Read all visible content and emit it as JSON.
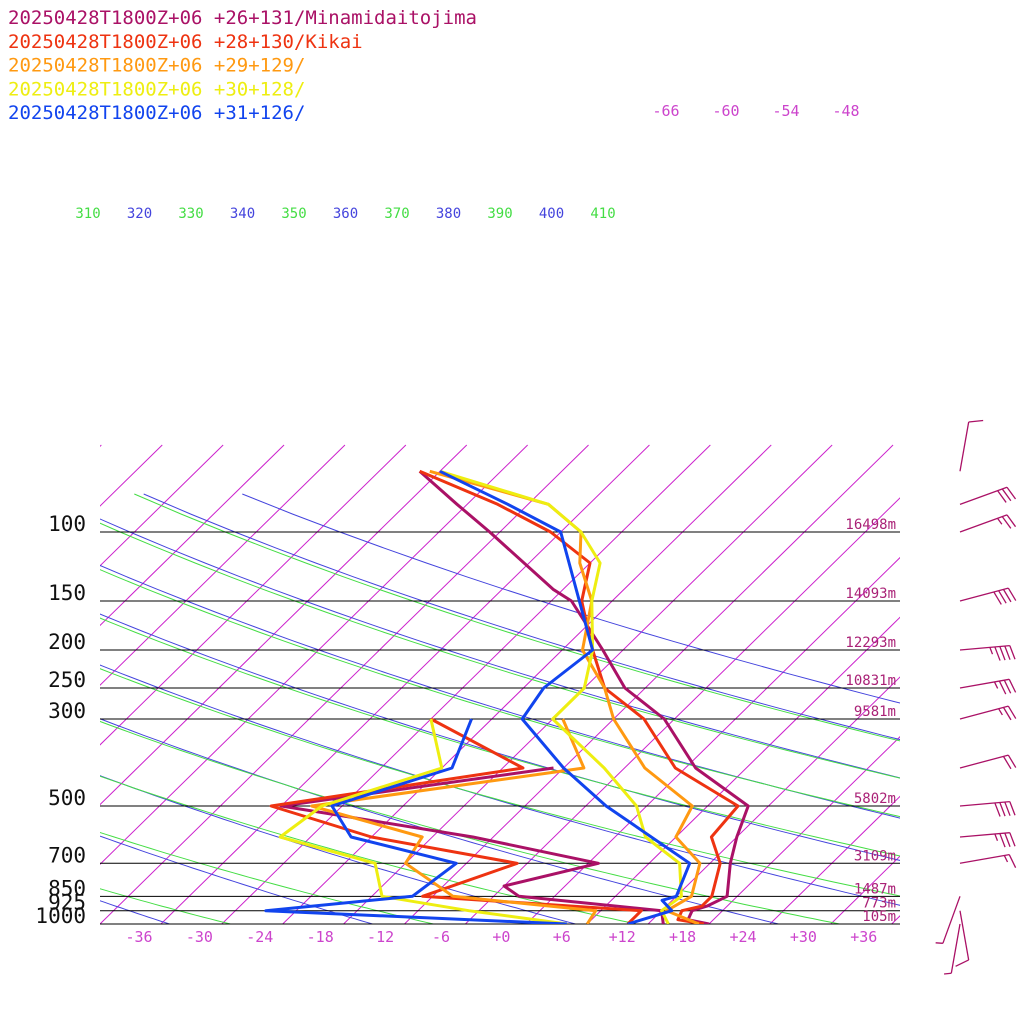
{
  "chart_data": {
    "type": "line",
    "title": "",
    "xlabel": "",
    "ylabel": "",
    "x_axis_unit": "temperature °C (skewed)",
    "y_axis_unit": "pressure hPa (log)",
    "xlim": [
      -40,
      40
    ],
    "ylim": [
      1000,
      70
    ],
    "y_scale": "log",
    "skew": true,
    "grid": true,
    "temperature_ticks": [
      "-36",
      "-30",
      "-24",
      "-18",
      "-12",
      "-6",
      "+0",
      "+6",
      "+12",
      "+18",
      "+24",
      "+30",
      "+36"
    ],
    "pressure_levels": [
      {
        "p": 100,
        "label": "100",
        "height": "16498m"
      },
      {
        "p": 150,
        "label": "150",
        "height": "14093m"
      },
      {
        "p": 200,
        "label": "200",
        "height": "12293m"
      },
      {
        "p": 250,
        "label": "250",
        "height": "10831m"
      },
      {
        "p": 300,
        "label": "300",
        "height": "9581m"
      },
      {
        "p": 500,
        "label": "500",
        "height": "5802m"
      },
      {
        "p": 700,
        "label": "700",
        "height": "3109m"
      },
      {
        "p": 850,
        "label": "850",
        "height": "1487m"
      },
      {
        "p": 925,
        "label": "925",
        "height": "773m"
      },
      {
        "p": 1000,
        "label": "1000",
        "height": "105m"
      }
    ],
    "theta_labels": [
      "310",
      "320",
      "330",
      "340",
      "350",
      "360",
      "370",
      "380",
      "390",
      "400",
      "410"
    ],
    "top_temperature_labels": [
      "-66",
      "-60",
      "-54",
      "-48"
    ],
    "series": [
      {
        "name": "20250428T1800Z+06 +26+131/Minamidaitojima",
        "color": "#aa1166",
        "temperature": [
          {
            "p": 1000,
            "t": 20
          },
          {
            "p": 975,
            "t": 17.5
          },
          {
            "p": 925,
            "t": 17
          },
          {
            "p": 900,
            "t": 18
          },
          {
            "p": 850,
            "t": 19
          },
          {
            "p": 700,
            "t": 16
          },
          {
            "p": 600,
            "t": 14
          },
          {
            "p": 500,
            "t": 12
          },
          {
            "p": 400,
            "t": 3
          },
          {
            "p": 300,
            "t": -5
          },
          {
            "p": 250,
            "t": -12
          },
          {
            "p": 200,
            "t": -18
          },
          {
            "p": 150,
            "t": -26
          },
          {
            "p": 140,
            "t": -29
          },
          {
            "p": 100,
            "t": -41
          },
          {
            "p": 85,
            "t": -47
          },
          {
            "p": 70,
            "t": -54
          }
        ],
        "dewpoint": [
          {
            "p": 1000,
            "t": 15.5
          },
          {
            "p": 925,
            "t": 14
          },
          {
            "p": 850,
            "t": -1.5
          },
          {
            "p": 800,
            "t": -4
          },
          {
            "p": 700,
            "t": 3
          },
          {
            "p": 600,
            "t": -12
          },
          {
            "p": 500,
            "t": -34
          },
          {
            "p": 400,
            "t": -11
          }
        ]
      },
      {
        "name": "20250428T1800Z+06 +28+130/Kikai",
        "color": "#ee3311",
        "temperature": [
          {
            "p": 1000,
            "t": 19.5
          },
          {
            "p": 975,
            "t": 16.5
          },
          {
            "p": 925,
            "t": 16
          },
          {
            "p": 900,
            "t": 17.5
          },
          {
            "p": 850,
            "t": 17.5
          },
          {
            "p": 700,
            "t": 15
          },
          {
            "p": 600,
            "t": 11.5
          },
          {
            "p": 500,
            "t": 11
          },
          {
            "p": 400,
            "t": 1
          },
          {
            "p": 300,
            "t": -7
          },
          {
            "p": 250,
            "t": -14
          },
          {
            "p": 200,
            "t": -19
          },
          {
            "p": 150,
            "t": -25
          },
          {
            "p": 120,
            "t": -28
          },
          {
            "p": 100,
            "t": -35
          },
          {
            "p": 85,
            "t": -43
          },
          {
            "p": 70,
            "t": -54
          }
        ],
        "dewpoint": [
          {
            "p": 1000,
            "t": 12
          },
          {
            "p": 925,
            "t": 12
          },
          {
            "p": 850,
            "t": -11
          },
          {
            "p": 700,
            "t": -5
          },
          {
            "p": 600,
            "t": -22
          },
          {
            "p": 500,
            "t": -35
          },
          {
            "p": 400,
            "t": -14
          },
          {
            "p": 300,
            "t": -28
          }
        ]
      },
      {
        "name": "20250428T1800Z+06 +29+129/",
        "color": "#ff9911",
        "temperature": [
          {
            "p": 1000,
            "t": 19
          },
          {
            "p": 925,
            "t": 14.5
          },
          {
            "p": 850,
            "t": 15.5
          },
          {
            "p": 700,
            "t": 13
          },
          {
            "p": 600,
            "t": 8
          },
          {
            "p": 500,
            "t": 6.5
          },
          {
            "p": 400,
            "t": -2
          },
          {
            "p": 300,
            "t": -10
          },
          {
            "p": 250,
            "t": -14
          },
          {
            "p": 200,
            "t": -20
          },
          {
            "p": 150,
            "t": -24
          },
          {
            "p": 120,
            "t": -29
          },
          {
            "p": 100,
            "t": -32
          },
          {
            "p": 85,
            "t": -38
          },
          {
            "p": 70,
            "t": -53
          }
        ],
        "dewpoint": [
          {
            "p": 1000,
            "t": 8
          },
          {
            "p": 925,
            "t": 7.5
          },
          {
            "p": 850,
            "t": -8
          },
          {
            "p": 700,
            "t": -16
          },
          {
            "p": 600,
            "t": -17
          },
          {
            "p": 500,
            "t": -31
          },
          {
            "p": 400,
            "t": -8
          },
          {
            "p": 300,
            "t": -15
          }
        ]
      },
      {
        "name": "20250428T1800Z+06 +30+128/",
        "color": "#eeee11",
        "temperature": [
          {
            "p": 1000,
            "t": 16
          },
          {
            "p": 925,
            "t": 14
          },
          {
            "p": 850,
            "t": 14.5
          },
          {
            "p": 700,
            "t": 11
          },
          {
            "p": 600,
            "t": 5
          },
          {
            "p": 500,
            "t": 1
          },
          {
            "p": 400,
            "t": -6
          },
          {
            "p": 300,
            "t": -16
          },
          {
            "p": 250,
            "t": -16
          },
          {
            "p": 200,
            "t": -19
          },
          {
            "p": 150,
            "t": -24
          },
          {
            "p": 120,
            "t": -27
          },
          {
            "p": 100,
            "t": -32
          },
          {
            "p": 85,
            "t": -38
          },
          {
            "p": 70,
            "t": -52
          }
        ],
        "dewpoint": [
          {
            "p": 1000,
            "t": 6
          },
          {
            "p": 925,
            "t": -5
          },
          {
            "p": 850,
            "t": -15
          },
          {
            "p": 700,
            "t": -19
          },
          {
            "p": 600,
            "t": -31
          },
          {
            "p": 500,
            "t": -30
          },
          {
            "p": 400,
            "t": -22
          },
          {
            "p": 300,
            "t": -28
          }
        ]
      },
      {
        "name": "20250428T1800Z+06 +31+126/",
        "color": "#1144ee",
        "temperature": [
          {
            "p": 1000,
            "t": 12
          },
          {
            "p": 925,
            "t": 15
          },
          {
            "p": 870,
            "t": 13
          },
          {
            "p": 850,
            "t": 14
          },
          {
            "p": 700,
            "t": 12
          },
          {
            "p": 500,
            "t": -2
          },
          {
            "p": 400,
            "t": -10
          },
          {
            "p": 300,
            "t": -19
          },
          {
            "p": 250,
            "t": -20
          },
          {
            "p": 200,
            "t": -19
          },
          {
            "p": 100,
            "t": -34
          },
          {
            "p": 85,
            "t": -42
          },
          {
            "p": 70,
            "t": -52
          }
        ],
        "dewpoint": [
          {
            "p": 1000,
            "t": 6
          },
          {
            "p": 925,
            "t": -25
          },
          {
            "p": 850,
            "t": -12
          },
          {
            "p": 700,
            "t": -11
          },
          {
            "p": 600,
            "t": -24
          },
          {
            "p": 500,
            "t": -29
          },
          {
            "p": 400,
            "t": -21
          },
          {
            "p": 300,
            "t": -24
          }
        ]
      }
    ],
    "wind_barbs": [
      {
        "p": 70,
        "dir": 190,
        "spd": 10
      },
      {
        "p": 85,
        "dir": 250,
        "spd": 30
      },
      {
        "p": 100,
        "dir": 250,
        "spd": 25
      },
      {
        "p": 150,
        "dir": 255,
        "spd": 40
      },
      {
        "p": 200,
        "dir": 265,
        "spd": 45
      },
      {
        "p": 250,
        "dir": 260,
        "spd": 35
      },
      {
        "p": 300,
        "dir": 255,
        "spd": 25
      },
      {
        "p": 400,
        "dir": 255,
        "spd": 20
      },
      {
        "p": 500,
        "dir": 265,
        "spd": 40
      },
      {
        "p": 600,
        "dir": 265,
        "spd": 35
      },
      {
        "p": 700,
        "dir": 260,
        "spd": 15
      },
      {
        "p": 850,
        "dir": 20,
        "spd": 5
      },
      {
        "p": 925,
        "dir": 350,
        "spd": 10
      },
      {
        "p": 1000,
        "dir": 10,
        "spd": 5
      }
    ]
  }
}
